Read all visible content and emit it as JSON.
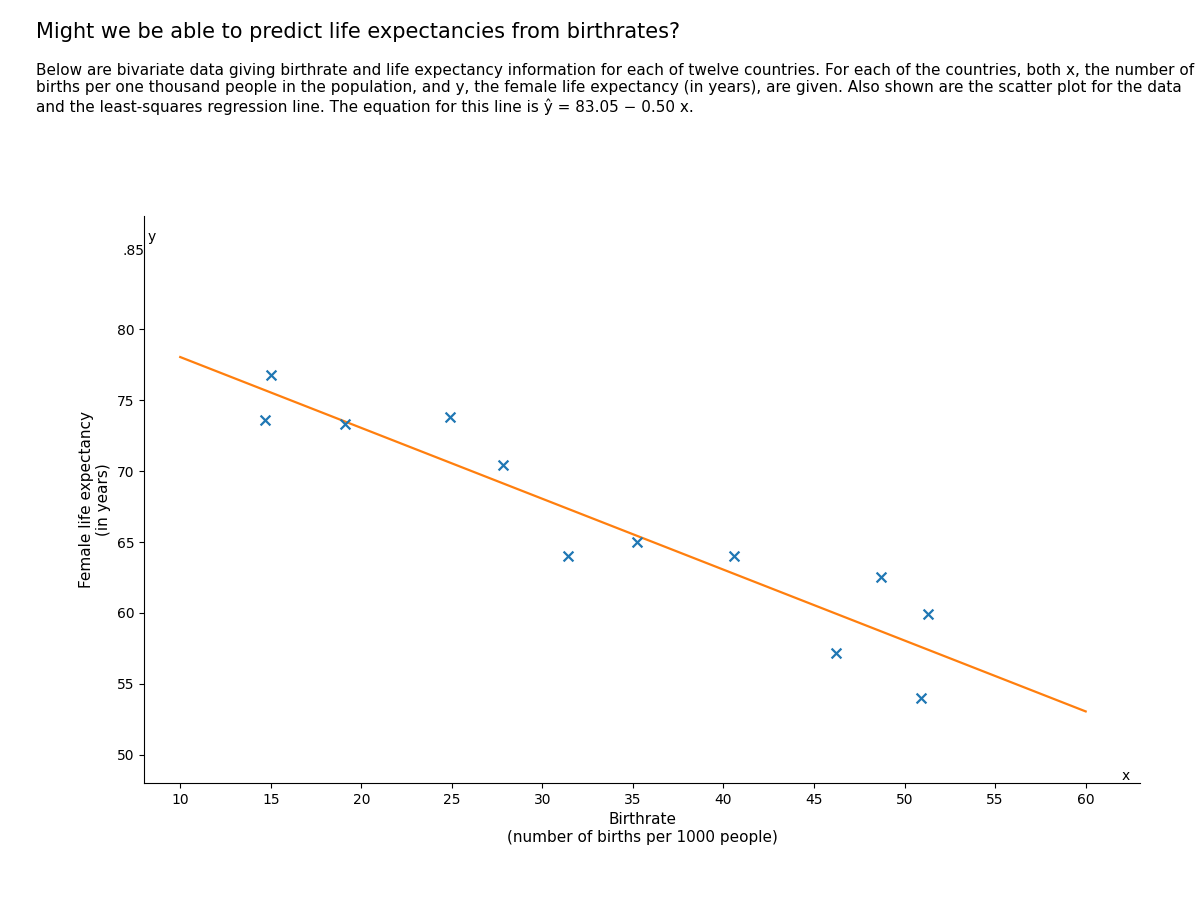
{
  "chart_data": {
    "type": "scatter",
    "title": "Might we be able to predict life expectancies from birthrates?",
    "subtitle": "Below are bivariate data giving birthrate and life expectancy information for each of twelve countries. For each of the countries, both x, the number of births per one thousand people in the population, and y, the female life expectancy (in years), are given. Also shown are the scatter plot for the data and the least-squares regression line. The equation for this line is ŷ = 83.05 − 0.50 x.",
    "x_label": "Birthrate\n(number of births per 1000 people)",
    "y_label": "Female life expectancy\n(in years)",
    "series": [
      {
        "type": "scatter",
        "marker": "x",
        "x": [
          50.9,
          27.8,
          19.1,
          24.9,
          35.2,
          31.4,
          15.0,
          51.3,
          46.2,
          14.7,
          48.7,
          40.6
        ],
        "values": [
          54.0,
          70.4,
          73.3,
          73.8,
          65.0,
          64.0,
          76.8,
          59.9,
          57.2,
          73.6,
          62.5,
          64.0
        ]
      },
      {
        "type": "line",
        "line_style": "solid",
        "x": [
          10,
          60
        ],
        "values": [
          78.05,
          53.05
        ]
      }
    ],
    "xlim": [
      8,
      63
    ],
    "ylim": [
      48,
      88
    ],
    "xticks": [
      10,
      15,
      20,
      25,
      30,
      35,
      40,
      45,
      50,
      55,
      60
    ],
    "yticks": [
      50,
      55,
      60,
      65,
      70,
      75,
      80
    ],
    "grid": false,
    "annotations": [
      {
        "text": ".85",
        "x": 8,
        "y": 85.5
      },
      {
        "text": "y",
        "x": 8.2,
        "y": 86.5
      },
      {
        "text": "x",
        "x": 62,
        "y": 48.5
      }
    ]
  }
}
